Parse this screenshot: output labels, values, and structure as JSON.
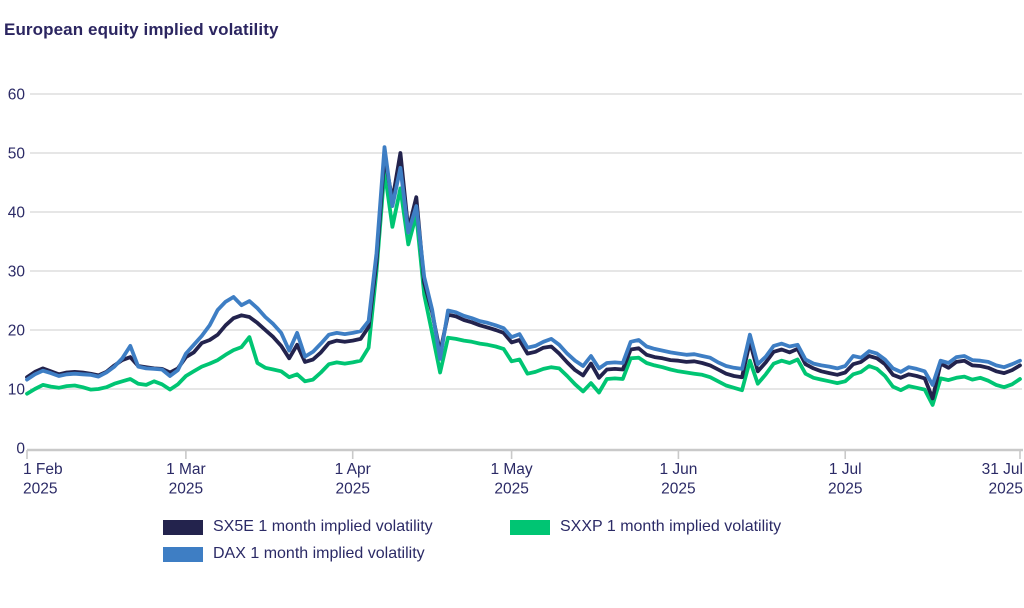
{
  "chart_data": {
    "type": "line",
    "title": "European equity implied volatility",
    "xlabel": "",
    "ylabel": "",
    "ylim": [
      0,
      60
    ],
    "y_ticks": [
      0,
      10,
      20,
      30,
      40,
      50,
      60
    ],
    "grid": "horizontal",
    "legend_position": "bottom",
    "x_tick_labels": [
      {
        "line1": "1 Feb",
        "line2": "2025",
        "index": 0
      },
      {
        "line1": "1 Mar",
        "line2": "2025",
        "index": 20
      },
      {
        "line1": "1 Apr",
        "line2": "2025",
        "index": 41
      },
      {
        "line1": "1 May",
        "line2": "2025",
        "index": 61
      },
      {
        "line1": "1 Jun",
        "line2": "2025",
        "index": 82
      },
      {
        "line1": "1 Jul",
        "line2": "2025",
        "index": 103
      },
      {
        "line1": "31 Jul",
        "line2": "2025",
        "index": 125
      }
    ],
    "x": [
      "Feb 3",
      "Feb 4",
      "Feb 5",
      "Feb 6",
      "Feb 7",
      "Feb 10",
      "Feb 11",
      "Feb 12",
      "Feb 13",
      "Feb 14",
      "Feb 17",
      "Feb 18",
      "Feb 19",
      "Feb 20",
      "Feb 21",
      "Feb 24",
      "Feb 25",
      "Feb 26",
      "Feb 27",
      "Feb 28",
      "Mar 3",
      "Mar 4",
      "Mar 5",
      "Mar 6",
      "Mar 7",
      "Mar 10",
      "Mar 11",
      "Mar 12",
      "Mar 13",
      "Mar 14",
      "Mar 17",
      "Mar 18",
      "Mar 19",
      "Mar 20",
      "Mar 21",
      "Mar 24",
      "Mar 25",
      "Mar 26",
      "Mar 27",
      "Mar 28",
      "Mar 31",
      "Apr 1",
      "Apr 2",
      "Apr 3",
      "Apr 4",
      "Apr 7",
      "Apr 8",
      "Apr 9",
      "Apr 10",
      "Apr 11",
      "Apr 14",
      "Apr 15",
      "Apr 16",
      "Apr 17",
      "Apr 22",
      "Apr 23",
      "Apr 24",
      "Apr 25",
      "Apr 28",
      "Apr 29",
      "Apr 30",
      "May 2",
      "May 5",
      "May 6",
      "May 7",
      "May 8",
      "May 9",
      "May 12",
      "May 13",
      "May 14",
      "May 15",
      "May 16",
      "May 19",
      "May 20",
      "May 21",
      "May 22",
      "May 23",
      "May 26",
      "May 27",
      "May 28",
      "May 29",
      "May 30",
      "Jun 2",
      "Jun 3",
      "Jun 4",
      "Jun 5",
      "Jun 6",
      "Jun 9",
      "Jun 10",
      "Jun 11",
      "Jun 12",
      "Jun 13",
      "Jun 16",
      "Jun 17",
      "Jun 18",
      "Jun 19",
      "Jun 20",
      "Jun 23",
      "Jun 24",
      "Jun 25",
      "Jun 26",
      "Jun 27",
      "Jun 30",
      "Jul 1",
      "Jul 2",
      "Jul 3",
      "Jul 4",
      "Jul 7",
      "Jul 8",
      "Jul 9",
      "Jul 10",
      "Jul 11",
      "Jul 14",
      "Jul 15",
      "Jul 16",
      "Jul 17",
      "Jul 18",
      "Jul 21",
      "Jul 22",
      "Jul 23",
      "Jul 24",
      "Jul 25",
      "Jul 28",
      "Jul 29",
      "Jul 30",
      "Jul 31"
    ],
    "series": [
      {
        "name": "SX5E 1 month implied volatility",
        "color": "#23234d",
        "values": [
          12.0,
          12.9,
          13.5,
          13.0,
          12.5,
          12.8,
          12.9,
          12.8,
          12.6,
          12.3,
          12.9,
          14.0,
          14.9,
          15.4,
          13.9,
          13.7,
          13.5,
          13.4,
          12.8,
          13.5,
          15.4,
          16.2,
          17.8,
          18.3,
          19.2,
          20.8,
          22.0,
          22.5,
          22.2,
          21.2,
          20.0,
          18.8,
          17.3,
          15.2,
          17.5,
          14.6,
          15.0,
          16.2,
          17.8,
          18.2,
          18.0,
          18.2,
          18.5,
          20.5,
          31.5,
          49.5,
          42.0,
          50.0,
          37.0,
          42.5,
          28.0,
          23.0,
          16.2,
          22.6,
          22.3,
          21.7,
          21.3,
          20.8,
          20.4,
          20.0,
          19.5,
          17.9,
          18.3,
          16.0,
          16.3,
          17.0,
          17.2,
          16.0,
          14.5,
          13.2,
          12.3,
          14.3,
          11.9,
          13.3,
          13.4,
          13.3,
          16.7,
          16.9,
          15.8,
          15.4,
          15.2,
          14.9,
          14.8,
          14.6,
          14.7,
          14.4,
          14.0,
          13.3,
          12.6,
          12.2,
          12.0,
          18.0,
          13.0,
          14.5,
          16.3,
          16.7,
          16.2,
          16.8,
          14.2,
          13.5,
          13.0,
          12.7,
          12.4,
          12.8,
          14.2,
          14.6,
          15.6,
          15.2,
          14.2,
          12.4,
          11.9,
          12.5,
          12.2,
          11.8,
          8.4,
          14.3,
          13.6,
          14.6,
          14.8,
          14.0,
          13.9,
          13.6,
          13.0,
          12.7,
          13.2,
          14.0
        ]
      },
      {
        "name": "DAX 1 month implied volatility",
        "color": "#3e7ec4",
        "values": [
          11.6,
          12.5,
          13.1,
          12.7,
          12.2,
          12.5,
          12.6,
          12.5,
          12.4,
          12.1,
          12.8,
          13.8,
          15.2,
          17.3,
          13.8,
          13.5,
          13.4,
          13.3,
          12.2,
          13.2,
          16.0,
          17.5,
          19.0,
          20.8,
          23.4,
          24.8,
          25.6,
          24.2,
          24.9,
          23.7,
          22.2,
          21.0,
          19.5,
          16.5,
          19.5,
          15.5,
          16.3,
          17.7,
          19.2,
          19.5,
          19.3,
          19.5,
          19.8,
          21.5,
          33.0,
          51.0,
          41.0,
          47.5,
          36.5,
          41.0,
          29.0,
          23.5,
          15.1,
          23.3,
          23.0,
          22.4,
          22.0,
          21.5,
          21.2,
          20.8,
          20.3,
          18.8,
          19.3,
          17.0,
          17.3,
          18.0,
          18.5,
          17.5,
          16.0,
          14.8,
          13.9,
          15.6,
          13.5,
          14.4,
          14.5,
          14.4,
          18.0,
          18.3,
          17.2,
          16.8,
          16.5,
          16.2,
          16.0,
          15.8,
          15.9,
          15.6,
          15.3,
          14.5,
          13.9,
          13.6,
          13.4,
          19.2,
          14.2,
          15.5,
          17.3,
          17.7,
          17.2,
          17.5,
          15.0,
          14.3,
          14.0,
          13.8,
          13.5,
          13.9,
          15.6,
          15.3,
          16.4,
          16.0,
          15.0,
          13.5,
          12.9,
          13.7,
          13.4,
          13.0,
          10.7,
          14.8,
          14.4,
          15.4,
          15.6,
          14.9,
          14.8,
          14.6,
          14.0,
          13.7,
          14.2,
          14.8
        ]
      },
      {
        "name": "SXXP 1 month implied volatility",
        "color": "#00c573",
        "values": [
          9.2,
          10.0,
          10.7,
          10.4,
          10.2,
          10.5,
          10.6,
          10.3,
          9.9,
          10.0,
          10.3,
          10.9,
          11.3,
          11.7,
          10.9,
          10.7,
          11.3,
          10.8,
          9.9,
          10.8,
          12.2,
          13.0,
          13.8,
          14.3,
          14.9,
          15.8,
          16.6,
          17.1,
          18.8,
          14.4,
          13.6,
          13.3,
          13.0,
          12.0,
          12.5,
          11.3,
          11.6,
          12.8,
          14.2,
          14.5,
          14.3,
          14.5,
          14.8,
          17.0,
          30.0,
          47.0,
          37.5,
          44.0,
          34.5,
          39.5,
          26.0,
          19.5,
          12.8,
          18.7,
          18.5,
          18.2,
          18.0,
          17.7,
          17.5,
          17.2,
          16.8,
          14.7,
          15.0,
          12.6,
          12.9,
          13.4,
          13.7,
          13.5,
          12.2,
          10.8,
          9.6,
          11.0,
          9.4,
          11.7,
          11.8,
          11.7,
          15.2,
          15.3,
          14.4,
          14.0,
          13.7,
          13.3,
          13.0,
          12.8,
          12.6,
          12.4,
          12.0,
          11.3,
          10.6,
          10.2,
          9.8,
          14.8,
          10.9,
          12.5,
          14.3,
          14.8,
          14.4,
          15.0,
          12.6,
          11.9,
          11.6,
          11.3,
          11.0,
          11.3,
          12.5,
          12.9,
          13.9,
          13.4,
          12.2,
          10.4,
          9.8,
          10.5,
          10.2,
          9.9,
          7.3,
          11.8,
          11.5,
          11.9,
          12.1,
          11.6,
          11.9,
          11.4,
          10.7,
          10.3,
          10.8,
          11.7
        ]
      }
    ],
    "colors": {
      "grid": "#d8d8d8",
      "axis": "#c9c9c9",
      "tick_label": "#2b2a66",
      "title": "#2b2560"
    }
  },
  "legend": {
    "items": [
      {
        "label": "SX5E 1 month implied volatility"
      },
      {
        "label": "SXXP 1 month implied volatility"
      },
      {
        "label": "DAX 1 month implied volatility"
      }
    ]
  }
}
